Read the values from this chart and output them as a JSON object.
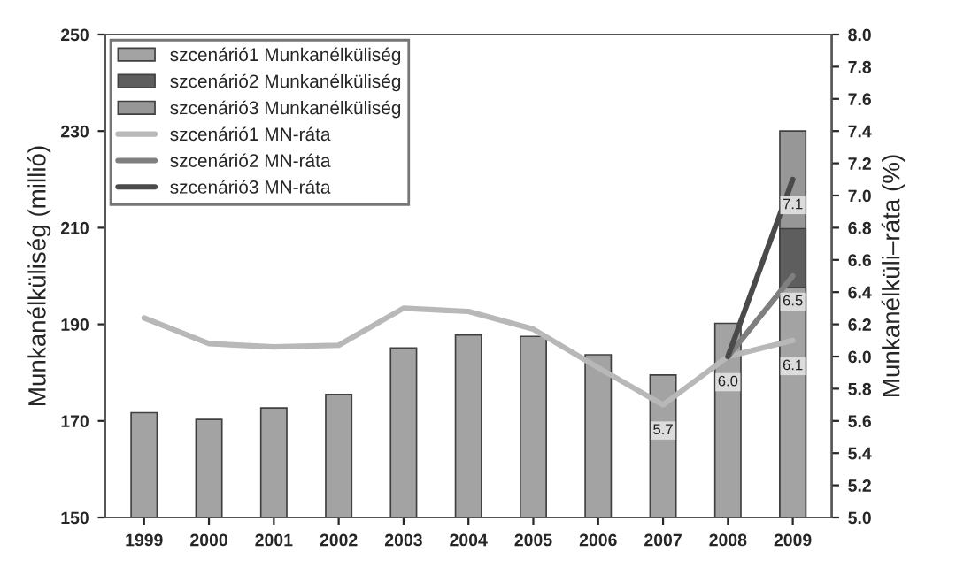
{
  "chart_data": {
    "type": "bar",
    "ylabel": "Munkanélküliség (millió)",
    "y2label": "Munkanélküli–ráta (%)",
    "categories": [
      "1999",
      "2000",
      "2001",
      "2002",
      "2003",
      "2004",
      "2005",
      "2006",
      "2007",
      "2008",
      "2009"
    ],
    "series": [
      {
        "name": "szcenárió1 Munkanélküliség",
        "color": "#a3a3a3",
        "values": [
          171.7,
          170.3,
          172.7,
          175.5,
          185.1,
          187.8,
          187.5,
          183.7,
          179.5,
          190.2,
          197.6
        ]
      },
      {
        "name": "szcenárió2 Munkanélküliség",
        "color": "#5e5e5e",
        "values": [
          null,
          null,
          null,
          null,
          null,
          null,
          null,
          null,
          null,
          null,
          209.8
        ]
      },
      {
        "name": "szcenárió3 Munkanélküliség",
        "color": "#979797",
        "values": [
          null,
          null,
          null,
          null,
          null,
          null,
          null,
          null,
          null,
          null,
          230.0
        ]
      },
      {
        "name": "szcenárió1 MN-ráta",
        "type": "line",
        "axis": "y2",
        "color": "#b8b8b8",
        "values": [
          6.24,
          6.08,
          6.06,
          6.07,
          6.3,
          6.28,
          6.17,
          5.93,
          5.7,
          6.0,
          6.1
        ],
        "value_labels": [
          null,
          null,
          null,
          null,
          null,
          null,
          null,
          null,
          "5.7",
          "6.0",
          "6.1"
        ]
      },
      {
        "name": "szcenárió2 MN-ráta",
        "type": "line",
        "axis": "y2",
        "color": "#7f7f7f",
        "values": [
          null,
          null,
          null,
          null,
          null,
          null,
          null,
          null,
          null,
          6.0,
          6.5
        ],
        "value_labels": [
          null,
          null,
          null,
          null,
          null,
          null,
          null,
          null,
          null,
          null,
          "6.5"
        ]
      },
      {
        "name": "szcenárió3 MN-ráta",
        "type": "line",
        "axis": "y2",
        "color": "#4a4a4a",
        "values": [
          null,
          null,
          null,
          null,
          null,
          null,
          null,
          null,
          null,
          6.0,
          7.1
        ],
        "value_labels": [
          null,
          null,
          null,
          null,
          null,
          null,
          null,
          null,
          null,
          null,
          "7.1"
        ]
      }
    ],
    "ylim": [
      150,
      250
    ],
    "yticks": [
      150,
      170,
      190,
      210,
      230,
      250
    ],
    "y2lim": [
      5.0,
      8.0
    ],
    "y2ticks": [
      {
        "value": 5.0,
        "label": "5.0"
      },
      {
        "value": 5.2,
        "label": "5.2"
      },
      {
        "value": 5.4,
        "label": "5.4"
      },
      {
        "value": 5.6,
        "label": "5.6"
      },
      {
        "value": 5.8,
        "label": "5.8"
      },
      {
        "value": 6.0,
        "label": "6.0"
      },
      {
        "value": 6.2,
        "label": "6.2"
      },
      {
        "value": 6.4,
        "label": "6.4"
      },
      {
        "value": 6.6,
        "label": "6.6"
      },
      {
        "value": 6.8,
        "label": "6.8"
      },
      {
        "value": 7.0,
        "label": "7.0"
      },
      {
        "value": 7.2,
        "label": "7.2"
      },
      {
        "value": 7.4,
        "label": "7.4"
      },
      {
        "value": 7.6,
        "label": "7.6"
      },
      {
        "value": 7.8,
        "label": "7.8"
      },
      {
        "value": 8.0,
        "label": "8.0"
      }
    ],
    "legend": "top left",
    "grid": false
  }
}
